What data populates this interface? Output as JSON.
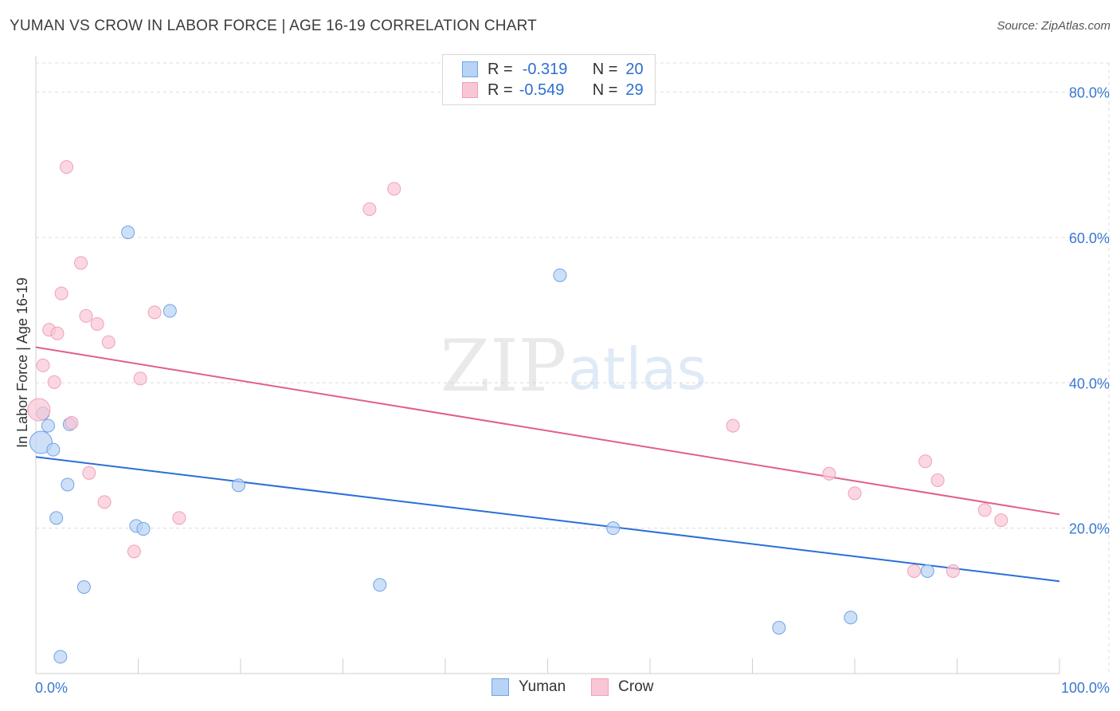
{
  "chart_data": {
    "type": "scatter",
    "title": "YUMAN VS CROW IN LABOR FORCE | AGE 16-19 CORRELATION CHART",
    "source": "Source: ZipAtlas.com",
    "ylabel": "In Labor Force | Age 16-19",
    "xlabel": "",
    "xlim": [
      0,
      100
    ],
    "ylim": [
      0,
      85
    ],
    "x_tick_labels": [
      "0.0%",
      "100.0%"
    ],
    "y_ticks": [
      20,
      40,
      60,
      80
    ],
    "y_tick_labels": [
      "20.0%",
      "40.0%",
      "60.0%",
      "80.0%"
    ],
    "watermark": "ZIPatlas",
    "legend": [
      {
        "r_label": "R =",
        "r_value": "-0.319",
        "n_label": "N =",
        "n_value": "20"
      },
      {
        "r_label": "R =",
        "r_value": "-0.549",
        "n_label": "N =",
        "n_value": "29"
      }
    ],
    "series": [
      {
        "name": "Yuman",
        "color": "#6fa3e6",
        "fill": "#b8d3f5",
        "trend_color": "#2a6fd6",
        "trend": {
          "x": [
            0,
            100
          ],
          "y": [
            29.8,
            12.7
          ]
        },
        "points": [
          {
            "x": 0.5,
            "y": 31.8,
            "size": 14
          },
          {
            "x": 0.7,
            "y": 35.8,
            "size": 8
          },
          {
            "x": 1.2,
            "y": 34.1,
            "size": 8
          },
          {
            "x": 1.7,
            "y": 30.8,
            "size": 8
          },
          {
            "x": 2.0,
            "y": 21.4,
            "size": 8
          },
          {
            "x": 2.4,
            "y": 2.3,
            "size": 8
          },
          {
            "x": 3.1,
            "y": 26.0,
            "size": 8
          },
          {
            "x": 3.3,
            "y": 34.3,
            "size": 8
          },
          {
            "x": 4.7,
            "y": 11.9,
            "size": 8
          },
          {
            "x": 9.0,
            "y": 60.7,
            "size": 8
          },
          {
            "x": 9.8,
            "y": 20.3,
            "size": 8
          },
          {
            "x": 10.5,
            "y": 19.9,
            "size": 8
          },
          {
            "x": 13.1,
            "y": 49.9,
            "size": 8
          },
          {
            "x": 19.8,
            "y": 25.9,
            "size": 8
          },
          {
            "x": 33.6,
            "y": 12.2,
            "size": 8
          },
          {
            "x": 51.2,
            "y": 54.8,
            "size": 8
          },
          {
            "x": 56.4,
            "y": 20.0,
            "size": 8
          },
          {
            "x": 72.6,
            "y": 6.3,
            "size": 8
          },
          {
            "x": 79.6,
            "y": 7.7,
            "size": 8
          },
          {
            "x": 87.1,
            "y": 14.1,
            "size": 8
          }
        ]
      },
      {
        "name": "Crow",
        "color": "#f0a0b8",
        "fill": "#f9c6d6",
        "trend_color": "#e0608a",
        "trend": {
          "x": [
            0,
            100
          ],
          "y": [
            44.9,
            21.9
          ]
        },
        "points": [
          {
            "x": 0.3,
            "y": 36.3,
            "size": 14
          },
          {
            "x": 0.7,
            "y": 42.4,
            "size": 8
          },
          {
            "x": 1.3,
            "y": 47.3,
            "size": 8
          },
          {
            "x": 1.8,
            "y": 40.1,
            "size": 8
          },
          {
            "x": 2.1,
            "y": 46.8,
            "size": 8
          },
          {
            "x": 2.5,
            "y": 52.3,
            "size": 8
          },
          {
            "x": 3.0,
            "y": 69.7,
            "size": 8
          },
          {
            "x": 3.5,
            "y": 34.5,
            "size": 8
          },
          {
            "x": 4.4,
            "y": 56.5,
            "size": 8
          },
          {
            "x": 4.9,
            "y": 49.2,
            "size": 8
          },
          {
            "x": 5.2,
            "y": 27.6,
            "size": 8
          },
          {
            "x": 6.0,
            "y": 48.1,
            "size": 8
          },
          {
            "x": 6.7,
            "y": 23.6,
            "size": 8
          },
          {
            "x": 7.1,
            "y": 45.6,
            "size": 8
          },
          {
            "x": 9.6,
            "y": 16.8,
            "size": 8
          },
          {
            "x": 10.2,
            "y": 40.6,
            "size": 8
          },
          {
            "x": 11.6,
            "y": 49.7,
            "size": 8
          },
          {
            "x": 14.0,
            "y": 21.4,
            "size": 8
          },
          {
            "x": 32.6,
            "y": 63.9,
            "size": 8
          },
          {
            "x": 35.0,
            "y": 66.7,
            "size": 8
          },
          {
            "x": 68.1,
            "y": 34.1,
            "size": 8
          },
          {
            "x": 77.5,
            "y": 27.5,
            "size": 8
          },
          {
            "x": 80.0,
            "y": 24.8,
            "size": 8
          },
          {
            "x": 85.8,
            "y": 14.1,
            "size": 8
          },
          {
            "x": 86.9,
            "y": 29.2,
            "size": 8
          },
          {
            "x": 88.1,
            "y": 26.6,
            "size": 8
          },
          {
            "x": 89.6,
            "y": 14.1,
            "size": 8
          },
          {
            "x": 92.7,
            "y": 22.5,
            "size": 8
          },
          {
            "x": 94.3,
            "y": 21.1,
            "size": 8
          }
        ]
      }
    ]
  }
}
